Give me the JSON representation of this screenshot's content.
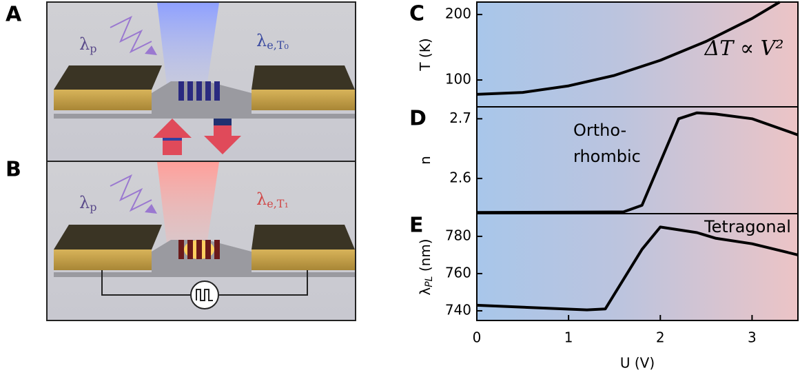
{
  "panels": {
    "A": {
      "label": "A",
      "pump": "λ",
      "pump_sub": "p",
      "emission": "λ",
      "emission_sub": "e,T₀"
    },
    "B": {
      "label": "B",
      "pump": "λ",
      "pump_sub": "p",
      "emission": "λ",
      "emission_sub": "e,T₁"
    }
  },
  "chart_data": [
    {
      "type": "line",
      "panel": "C",
      "ylabel": "T (K)",
      "xlim": [
        0,
        3.5
      ],
      "ylim": [
        59,
        219
      ],
      "yticks": [
        100,
        200
      ],
      "x": [
        0,
        0.5,
        1,
        1.5,
        2,
        2.5,
        3,
        3.3
      ],
      "values": [
        78,
        81,
        91,
        107,
        130,
        159,
        194,
        219
      ],
      "color": "#000000",
      "annotations": [
        "ΔT ∝ V²"
      ]
    },
    {
      "type": "line",
      "panel": "D",
      "ylabel": "n",
      "xlim": [
        0,
        3.5
      ],
      "ylim": [
        2.541,
        2.72
      ],
      "yticks": [
        2.6,
        2.7
      ],
      "x": [
        0,
        1.6,
        1.8,
        2.2,
        2.4,
        2.6,
        3,
        3.5
      ],
      "values": [
        2.543,
        2.544,
        2.555,
        2.7,
        2.71,
        2.708,
        2.7,
        2.673
      ],
      "color": "#000000",
      "annotations": [
        "Ortho-",
        "rhombic"
      ]
    },
    {
      "type": "line",
      "panel": "E",
      "ylabel": "λ",
      "ylabel_sub": "PL",
      "ylabel_unit": " (nm)",
      "xlabel": "U (V)",
      "xlim": [
        0,
        3.5
      ],
      "ylim": [
        734.8,
        792.2
      ],
      "yticks": [
        740,
        760,
        780
      ],
      "xticks": [
        0,
        1,
        2,
        3
      ],
      "x": [
        0,
        1.2,
        1.4,
        1.8,
        2,
        2.4,
        2.6,
        3,
        3.5
      ],
      "values": [
        743,
        740.5,
        741,
        773,
        785,
        782,
        779,
        776,
        770
      ],
      "color": "#000000",
      "annotations": [
        "Tetragonal"
      ]
    }
  ]
}
